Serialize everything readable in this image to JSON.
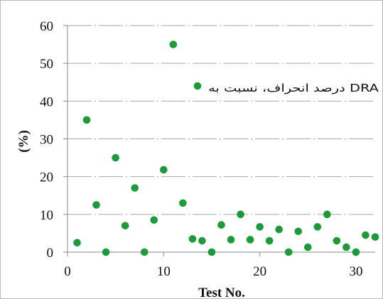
{
  "chart_data": {
    "type": "scatter",
    "xlabel": "Test No.",
    "ylabel": "(%)",
    "xlim": [
      0,
      32
    ],
    "ylim": [
      0,
      60
    ],
    "x_ticks": [
      "0",
      "10",
      "20",
      "30"
    ],
    "y_ticks": [
      "0",
      "10",
      "20",
      "30",
      "40",
      "50",
      "60"
    ],
    "grid": "horizontal-dashed",
    "legend_position": "top-right",
    "marker_color": "#1f9a3a",
    "series": [
      {
        "name": "درصد انحراف، نسبت به DRA",
        "points": [
          [
            1,
            2.5
          ],
          [
            2,
            35
          ],
          [
            3,
            12.5
          ],
          [
            4,
            0
          ],
          [
            5,
            25
          ],
          [
            6,
            7
          ],
          [
            7,
            17
          ],
          [
            8,
            0
          ],
          [
            9,
            8.5
          ],
          [
            10,
            21.8
          ],
          [
            11,
            55
          ],
          [
            12,
            13
          ],
          [
            13,
            3.5
          ],
          [
            14,
            3
          ],
          [
            15,
            0
          ],
          [
            16,
            7.2
          ],
          [
            17,
            3.3
          ],
          [
            18,
            10
          ],
          [
            19,
            3.3
          ],
          [
            20,
            6.7
          ],
          [
            21,
            3
          ],
          [
            22,
            6
          ],
          [
            23,
            0
          ],
          [
            24,
            5.5
          ],
          [
            25,
            1.3
          ],
          [
            26,
            6.7
          ],
          [
            27,
            10
          ],
          [
            28,
            3
          ],
          [
            29,
            1.3
          ],
          [
            30,
            0
          ],
          [
            31,
            4.5
          ],
          [
            32,
            4
          ]
        ]
      }
    ]
  }
}
